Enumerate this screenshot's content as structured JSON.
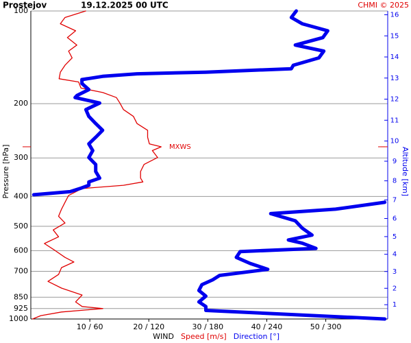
{
  "chart_data": {
    "type": "line",
    "title": "Prostejov",
    "subtitle": "19.12.2025 00 UTC",
    "credit": "CHMI © 2025",
    "ylabel": "Pressure [hPa]",
    "y2label": "Altitude [km]",
    "xlabel": "WIND",
    "ylim": [
      100,
      1000
    ],
    "yscale": "log",
    "yticks": [
      100,
      200,
      300,
      400,
      500,
      600,
      700,
      850,
      925,
      1000
    ],
    "y2ticks": [
      1,
      2,
      3,
      4,
      5,
      6,
      7,
      8,
      9,
      10,
      11,
      12,
      13,
      14,
      15,
      16
    ],
    "xlim": [
      0,
      60.5
    ],
    "x2lim": [
      0,
      363
    ],
    "xticks": [
      {
        "value": 10,
        "label": "10 / 60"
      },
      {
        "value": 20,
        "label": "20 / 120"
      },
      {
        "value": 30,
        "label": "30 / 180"
      },
      {
        "value": 40,
        "label": "40 / 240"
      },
      {
        "value": 50,
        "label": "50 / 300"
      }
    ],
    "grid": true,
    "annotations": [
      {
        "text": "MXWS",
        "pressure": 276,
        "color": "#e00000"
      }
    ],
    "series": [
      {
        "name": "Speed [m/s]",
        "color": "#e00000",
        "width": 1.3,
        "y": [
          100,
          105,
          110,
          116,
          122,
          129,
          135,
          142,
          150,
          158,
          166,
          170,
          178,
          184,
          191,
          199,
          209,
          220,
          232,
          244,
          257,
          270,
          276,
          284,
          299,
          315,
          332,
          349,
          359,
          368,
          377,
          397,
          418,
          440,
          464,
          488,
          514,
          541,
          569,
          599,
          631,
          653,
          681,
          717,
          755,
          794,
          836,
          880,
          911,
          925,
          949,
          975,
          1000
        ],
        "values": [
          9.3,
          5.8,
          5.0,
          7.6,
          6.2,
          7.8,
          6.4,
          7.0,
          5.8,
          5.0,
          4.8,
          8.1,
          8.5,
          12.2,
          14.5,
          15.1,
          15.7,
          17.4,
          18.0,
          19.8,
          19.8,
          20.1,
          22.1,
          20.6,
          21.5,
          19.2,
          18.6,
          18.6,
          19.0,
          15.7,
          8.7,
          6.4,
          5.8,
          5.2,
          4.7,
          5.8,
          3.8,
          4.7,
          2.3,
          4.1,
          5.8,
          7.3,
          5.2,
          4.7,
          2.9,
          5.2,
          8.7,
          7.6,
          8.7,
          12.2,
          5.2,
          1.7,
          0.3
        ]
      },
      {
        "name": "Direction [°]",
        "color": "#0000ee",
        "width": 5,
        "axis": "x2",
        "y": [
          100,
          105,
          110,
          116,
          122,
          129,
          135,
          142,
          150,
          154,
          158,
          160,
          163,
          167,
          172,
          180,
          188,
          191,
          199,
          209,
          220,
          232,
          244,
          257,
          270,
          284,
          299,
          315,
          332,
          349,
          359,
          368,
          377,
          386,
          395,
          399,
          418,
          440,
          455,
          480,
          507,
          534,
          554,
          567,
          590,
          604,
          631,
          660,
          690,
          722,
          746,
          774,
          808,
          843,
          880,
          911,
          938,
          1000
        ],
        "values": [
          270,
          265,
          276,
          302,
          297,
          269,
          298,
          293,
          267,
          265,
          178,
          108,
          73,
          52,
          52,
          59,
          47,
          45,
          70,
          56,
          59,
          66,
          73,
          66,
          59,
          63,
          59,
          66,
          66,
          70,
          59,
          59,
          50,
          40,
          3,
          null,
          360,
          310,
          244,
          269,
          276,
          286,
          262,
          276,
          290,
          213,
          209,
          223,
          241,
          192,
          185,
          174,
          171,
          178,
          171,
          178,
          178,
          360
        ]
      }
    ]
  }
}
